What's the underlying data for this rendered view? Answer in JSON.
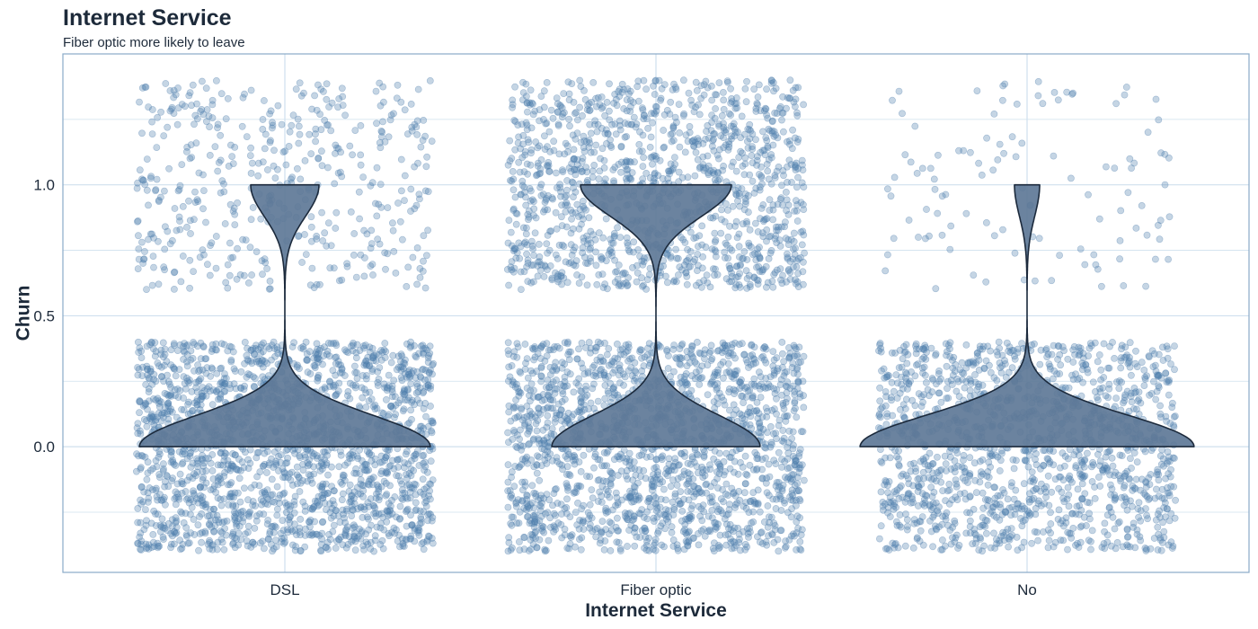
{
  "chart_data": {
    "type": "violin",
    "overlay": "jitter-scatter",
    "title": "Internet Service",
    "subtitle": "Fiber optic more likely to leave",
    "xlabel": "Internet Service",
    "ylabel": "Churn",
    "categories": [
      "DSL",
      "Fiber optic",
      "No"
    ],
    "y_ticks": [
      0.0,
      0.5,
      1.0
    ],
    "y_tick_labels": [
      "0.0",
      "0.5",
      "1.0"
    ],
    "ylim": [
      -0.48,
      1.5
    ],
    "grid": true,
    "legend": "none",
    "jitter": {
      "width": 0.4,
      "height": 0.4
    },
    "groups": [
      {
        "name": "DSL",
        "churn_0_count": 1962,
        "churn_1_count": 459,
        "churn_rate": 0.19
      },
      {
        "name": "Fiber optic",
        "churn_0_count": 1799,
        "churn_1_count": 1297,
        "churn_rate": 0.42
      },
      {
        "name": "No",
        "churn_0_count": 1413,
        "churn_1_count": 113,
        "churn_rate": 0.07
      }
    ],
    "colors": {
      "points": "#4f7fae",
      "violin_fill": "#5e7897",
      "violin_stroke": "#1c2a3c",
      "panel_border": "#8aaac8",
      "grid": "#cfe0ee",
      "text": "#1d2a3a"
    }
  }
}
